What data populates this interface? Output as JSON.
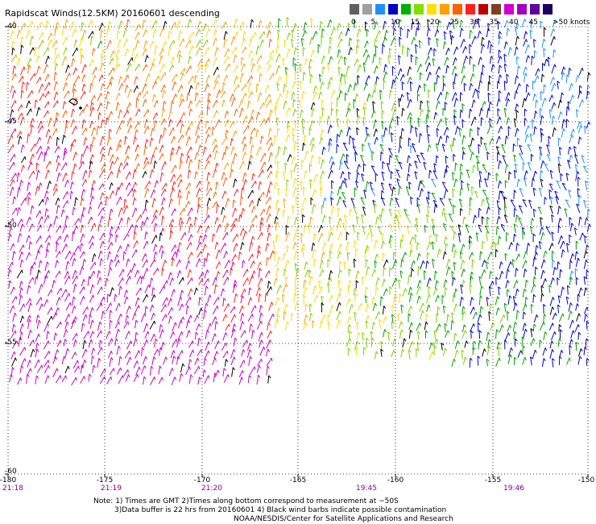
{
  "title": "Rapidscat Winds(12.5KM) 20160601 descending",
  "legend": {
    "colors": [
      "#606060",
      "#a0a0a0",
      "#1e90ff",
      "#0000c8",
      "#00b000",
      "#80e000",
      "#ffe000",
      "#ffa000",
      "#ff6000",
      "#ff2020",
      "#c00000",
      "#804020",
      "#d000d0",
      "#a000c0",
      "#6000a0",
      "#200060"
    ],
    "labels": [
      "0",
      "5",
      "10",
      "15",
      "20",
      "25",
      "30",
      "35",
      "40",
      "45"
    ],
    "units": ">50 knots"
  },
  "axes": {
    "lat_labels": [
      "-40",
      "-45",
      "-50",
      "-55",
      "-60"
    ],
    "lon_labels": [
      "-180",
      "-175",
      "-170",
      "-165",
      "-160",
      "-155",
      "-150"
    ],
    "time_labels": [
      "21:18",
      "21:19",
      "21:20",
      "19:45",
      "19:46"
    ]
  },
  "notes": [
    "Note: 1) Times are GMT 2)Times along bottom correspond to measurement at ~50S",
    "3)Data buffer is 22 hrs from 20160601 4) Black wind barbs indicate possible contamination",
    "NOAA/NESDIS/Center for Satellite Applications and Research"
  ]
}
